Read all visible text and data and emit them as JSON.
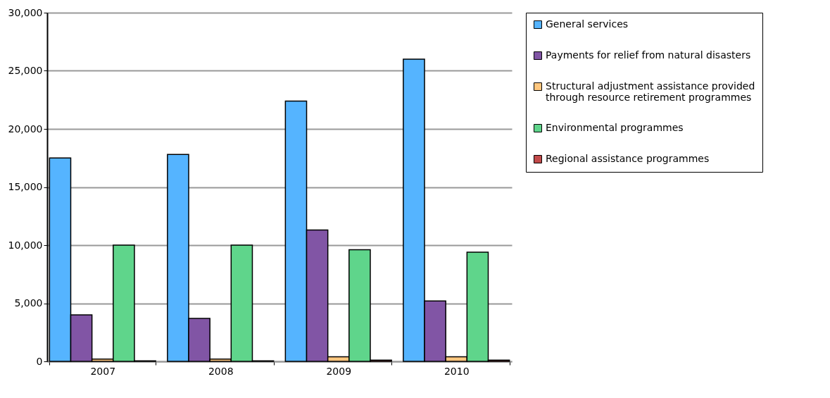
{
  "chart_data": {
    "type": "bar",
    "categories": [
      "2007",
      "2008",
      "2009",
      "2010"
    ],
    "series": [
      {
        "name": "General services",
        "color": "#55b4ff",
        "values": [
          17500,
          17800,
          22400,
          26000
        ]
      },
      {
        "name": "Payments for relief from natural disasters",
        "color": "#8155a5",
        "values": [
          4000,
          3700,
          11300,
          5200
        ]
      },
      {
        "name": "Structural adjustment assistance provided through resource retirement programmes",
        "color": "#ffc77f",
        "values": [
          200,
          200,
          400,
          400
        ]
      },
      {
        "name": "Environmental programmes",
        "color": "#5fd58b",
        "values": [
          10000,
          10000,
          9600,
          9400
        ]
      },
      {
        "name": "Regional assistance programmes",
        "color": "#c24a4a",
        "values": [
          50,
          50,
          100,
          100
        ]
      }
    ],
    "ylim": [
      0,
      30000
    ],
    "yticks": [
      0,
      {
        "value": 5000,
        "label": "5,000"
      },
      {
        "value": 10000,
        "label": "10,000"
      },
      {
        "value": 15000,
        "label": "15,000"
      },
      {
        "value": 20000,
        "label": "20,000"
      },
      {
        "value": 25000,
        "label": "25,000"
      },
      {
        "value": 30000,
        "label": "30,000"
      }
    ],
    "grid": "y",
    "legend": "right"
  }
}
